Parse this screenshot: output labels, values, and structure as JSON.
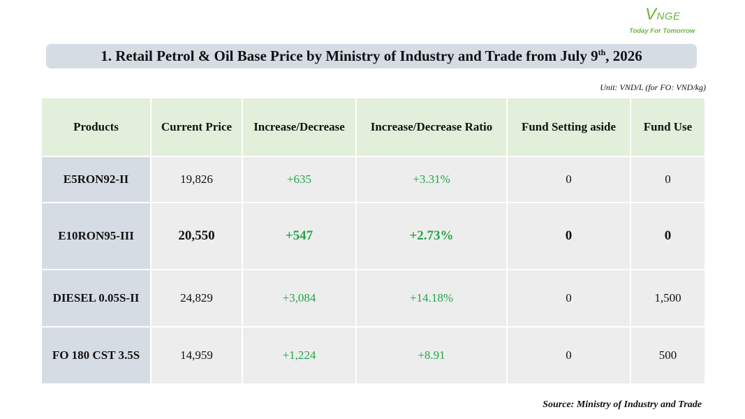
{
  "logo": {
    "mark_v": "V",
    "mark_rest": "NGE",
    "tagline": "Today For Tomorrow"
  },
  "title": {
    "prefix": "1. Retail Petrol & Oil Base Price by Ministry of Industry and Trade from July 9",
    "superscript": "th",
    "suffix": ", 2026"
  },
  "unit": "Unit: VND/L (for FO: VND/kg)",
  "table": {
    "headers": [
      "Products",
      "Current Price",
      "Increase/Decrease",
      "Increase/Decrease Ratio",
      "Fund Setting aside",
      "Fund Use"
    ],
    "rows": [
      {
        "product": "E5RON92-II",
        "price": "19,826",
        "change": "+635",
        "ratio": "+3.31%",
        "fund_aside": "0",
        "fund_use": "0"
      },
      {
        "product": "E10RON95-III",
        "price": "20,550",
        "change": "+547",
        "ratio": "+2.73%",
        "fund_aside": "0",
        "fund_use": "0"
      },
      {
        "product": "DIESEL 0.05S-II",
        "price": "24,829",
        "change": "+3,084",
        "ratio": "+14.18%",
        "fund_aside": "0",
        "fund_use": "1,500"
      },
      {
        "product": "FO 180 CST 3.5S",
        "price": "14,959",
        "change": "+1,224",
        "ratio": "+8.91",
        "fund_aside": "0",
        "fund_use": "500"
      }
    ]
  },
  "source": "Source: Ministry of Industry and Trade",
  "colors": {
    "header_bg": "#e2efda",
    "product_bg": "#d6dce4",
    "cell_bg": "#ededed",
    "increase_green": "#22a548",
    "logo_green": "#6cb33f"
  }
}
